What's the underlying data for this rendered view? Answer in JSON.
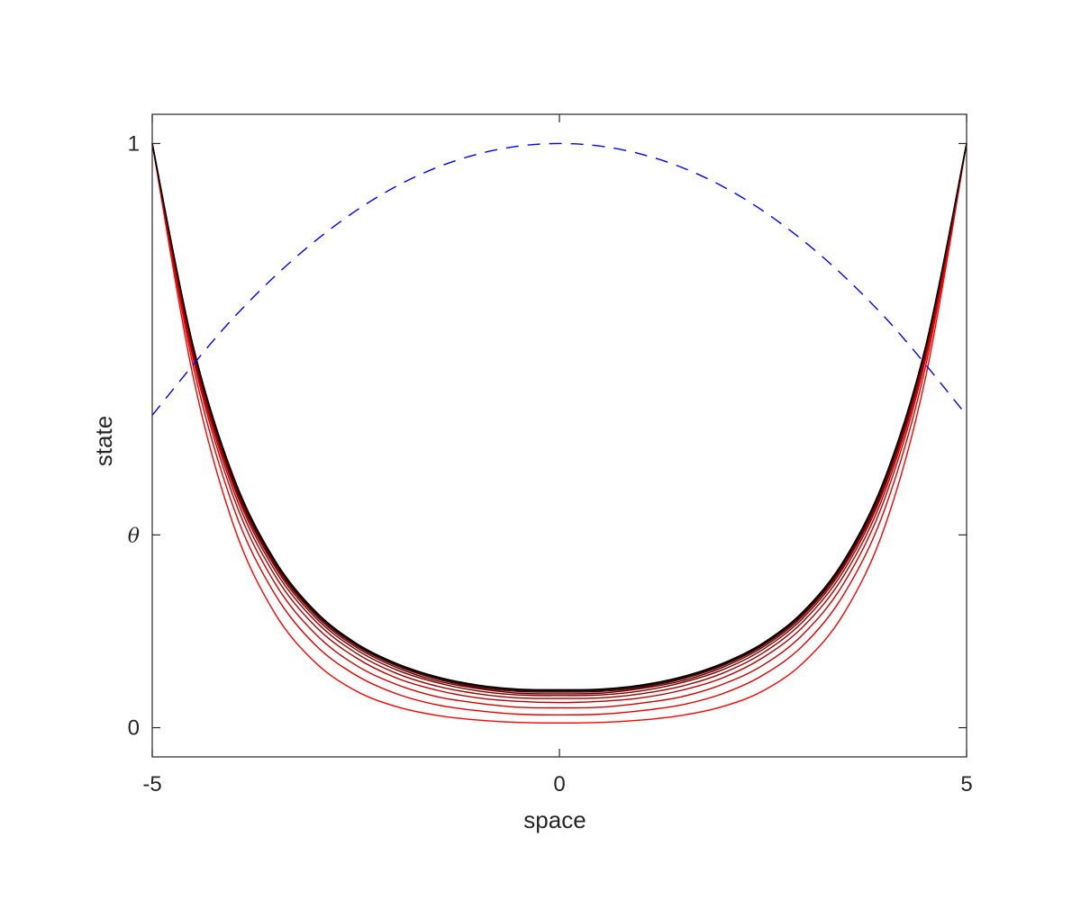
{
  "chart_data": {
    "type": "line",
    "xlabel": "space",
    "ylabel": "state",
    "xlim": [
      -5,
      5
    ],
    "ylim": [
      -0.05,
      1.05
    ],
    "grid": false,
    "x_ticks": [
      {
        "value": -5,
        "label": "-5"
      },
      {
        "value": 0,
        "label": "0"
      },
      {
        "value": 5,
        "label": "5"
      }
    ],
    "y_ticks": [
      {
        "value": 0,
        "label": "0"
      },
      {
        "value": 0.33,
        "label": "θ"
      },
      {
        "value": 1,
        "label": "1"
      }
    ],
    "reference_curve": {
      "style": "dashed",
      "color": "#0000ff",
      "x": [
        -5,
        -4,
        -3,
        -2,
        -1,
        0,
        1,
        2,
        3,
        4,
        5
      ],
      "y": [
        0.535,
        0.702,
        0.833,
        0.927,
        0.982,
        1.0,
        0.982,
        0.927,
        0.833,
        0.702,
        0.535
      ]
    },
    "series": [
      {
        "color": "#ff0000",
        "x": [
          -5,
          -4.5,
          -4,
          -3.5,
          -3,
          -2.5,
          -2,
          -1.5,
          -1,
          -0.5,
          0,
          0.5,
          1,
          1.5,
          2,
          2.5,
          3,
          3.5,
          4,
          4.5,
          5
        ],
        "y": [
          1.0,
          0.602,
          0.346,
          0.197,
          0.112,
          0.063,
          0.036,
          0.021,
          0.013,
          0.009,
          0.008,
          0.009,
          0.013,
          0.021,
          0.036,
          0.063,
          0.112,
          0.197,
          0.346,
          0.602,
          1.0
        ]
      },
      {
        "color": "#e60000",
        "x": [
          -5,
          -4.5,
          -4,
          -3.5,
          -3,
          -2.5,
          -2,
          -1.5,
          -1,
          -0.5,
          0,
          0.5,
          1,
          1.5,
          2,
          2.5,
          3,
          3.5,
          4,
          4.5,
          5
        ],
        "y": [
          1.0,
          0.621,
          0.376,
          0.23,
          0.142,
          0.09,
          0.058,
          0.039,
          0.029,
          0.023,
          0.022,
          0.023,
          0.029,
          0.039,
          0.058,
          0.09,
          0.142,
          0.23,
          0.376,
          0.621,
          1.0
        ]
      },
      {
        "color": "#cc0000",
        "x": [
          -5,
          -4.5,
          -4,
          -3.5,
          -3,
          -2.5,
          -2,
          -1.5,
          -1,
          -0.5,
          0,
          0.5,
          1,
          1.5,
          2,
          2.5,
          3,
          3.5,
          4,
          4.5,
          5
        ],
        "y": [
          1.0,
          0.633,
          0.394,
          0.249,
          0.161,
          0.107,
          0.074,
          0.053,
          0.042,
          0.035,
          0.034,
          0.035,
          0.042,
          0.053,
          0.074,
          0.107,
          0.161,
          0.249,
          0.394,
          0.633,
          1.0
        ]
      },
      {
        "color": "#b30000",
        "x": [
          -5,
          -4.5,
          -4,
          -3.5,
          -3,
          -2.5,
          -2,
          -1.5,
          -1,
          -0.5,
          0,
          0.5,
          1,
          1.5,
          2,
          2.5,
          3,
          3.5,
          4,
          4.5,
          5
        ],
        "y": [
          1.0,
          0.64,
          0.405,
          0.262,
          0.174,
          0.12,
          0.085,
          0.064,
          0.051,
          0.045,
          0.043,
          0.045,
          0.051,
          0.064,
          0.085,
          0.12,
          0.174,
          0.262,
          0.405,
          0.64,
          1.0
        ]
      },
      {
        "color": "#990000",
        "x": [
          -5,
          -4.5,
          -4,
          -3.5,
          -3,
          -2.5,
          -2,
          -1.5,
          -1,
          -0.5,
          0,
          0.5,
          1,
          1.5,
          2,
          2.5,
          3,
          3.5,
          4,
          4.5,
          5
        ],
        "y": [
          1.0,
          0.645,
          0.413,
          0.271,
          0.183,
          0.128,
          0.093,
          0.071,
          0.058,
          0.051,
          0.05,
          0.051,
          0.058,
          0.071,
          0.093,
          0.128,
          0.183,
          0.271,
          0.413,
          0.645,
          1.0
        ]
      },
      {
        "color": "#800000",
        "x": [
          -5,
          -4.5,
          -4,
          -3.5,
          -3,
          -2.5,
          -2,
          -1.5,
          -1,
          -0.5,
          0,
          0.5,
          1,
          1.5,
          2,
          2.5,
          3,
          3.5,
          4,
          4.5,
          5
        ],
        "y": [
          1.0,
          0.648,
          0.418,
          0.277,
          0.189,
          0.134,
          0.099,
          0.077,
          0.063,
          0.056,
          0.055,
          0.056,
          0.063,
          0.077,
          0.099,
          0.134,
          0.189,
          0.277,
          0.418,
          0.648,
          1.0
        ]
      },
      {
        "color": "#660000",
        "x": [
          -5,
          -4.5,
          -4,
          -3.5,
          -3,
          -2.5,
          -2,
          -1.5,
          -1,
          -0.5,
          0,
          0.5,
          1,
          1.5,
          2,
          2.5,
          3,
          3.5,
          4,
          4.5,
          5
        ],
        "y": [
          1.0,
          0.65,
          0.422,
          0.281,
          0.193,
          0.138,
          0.103,
          0.08,
          0.067,
          0.059,
          0.058,
          0.059,
          0.067,
          0.08,
          0.103,
          0.138,
          0.193,
          0.281,
          0.422,
          0.65,
          1.0
        ]
      },
      {
        "color": "#4d0000",
        "x": [
          -5,
          -4.5,
          -4,
          -3.5,
          -3,
          -2.5,
          -2,
          -1.5,
          -1,
          -0.5,
          0,
          0.5,
          1,
          1.5,
          2,
          2.5,
          3,
          3.5,
          4,
          4.5,
          5
        ],
        "y": [
          1.0,
          0.652,
          0.425,
          0.284,
          0.196,
          0.141,
          0.106,
          0.083,
          0.069,
          0.062,
          0.061,
          0.062,
          0.069,
          0.083,
          0.106,
          0.141,
          0.196,
          0.284,
          0.425,
          0.652,
          1.0
        ]
      },
      {
        "color": "#330000",
        "x": [
          -5,
          -4.5,
          -4,
          -3.5,
          -3,
          -2.5,
          -2,
          -1.5,
          -1,
          -0.5,
          0,
          0.5,
          1,
          1.5,
          2,
          2.5,
          3,
          3.5,
          4,
          4.5,
          5
        ],
        "y": [
          1.0,
          0.653,
          0.427,
          0.286,
          0.198,
          0.143,
          0.108,
          0.085,
          0.071,
          0.064,
          0.063,
          0.064,
          0.071,
          0.085,
          0.108,
          0.143,
          0.198,
          0.286,
          0.427,
          0.653,
          1.0
        ]
      },
      {
        "color": "#1a0000",
        "x": [
          -5,
          -4.5,
          -4,
          -3.5,
          -3,
          -2.5,
          -2,
          -1.5,
          -1,
          -0.5,
          0,
          0.5,
          1,
          1.5,
          2,
          2.5,
          3,
          3.5,
          4,
          4.5,
          5
        ],
        "y": [
          1.0,
          0.654,
          0.428,
          0.287,
          0.199,
          0.144,
          0.109,
          0.086,
          0.072,
          0.065,
          0.064,
          0.065,
          0.072,
          0.086,
          0.109,
          0.144,
          0.199,
          0.287,
          0.428,
          0.654,
          1.0
        ]
      },
      {
        "color": "#000000",
        "x": [
          -5,
          -4.5,
          -4,
          -3.5,
          -3,
          -2.5,
          -2,
          -1.5,
          -1,
          -0.5,
          0,
          0.5,
          1,
          1.5,
          2,
          2.5,
          3,
          3.5,
          4,
          4.5,
          5
        ],
        "y": [
          1.0,
          0.655,
          0.429,
          0.288,
          0.2,
          0.145,
          0.11,
          0.087,
          0.073,
          0.066,
          0.065,
          0.066,
          0.073,
          0.087,
          0.11,
          0.145,
          0.2,
          0.288,
          0.429,
          0.655,
          1.0
        ]
      }
    ]
  }
}
